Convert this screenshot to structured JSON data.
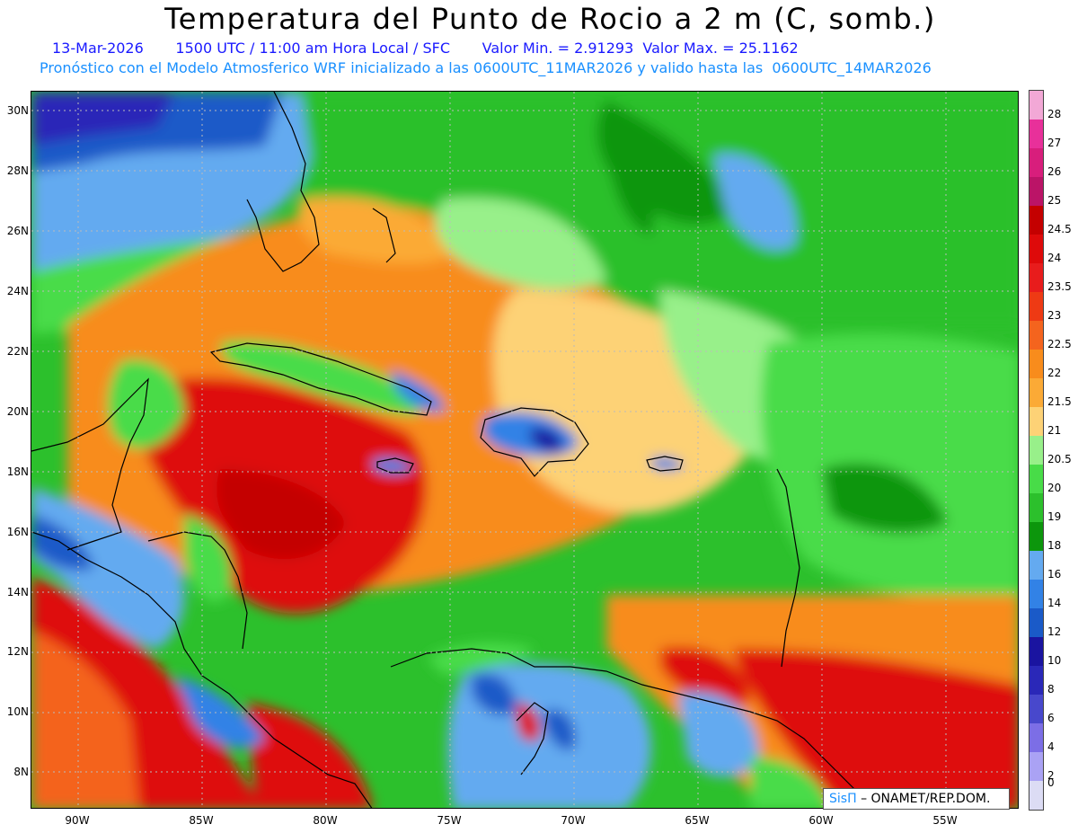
{
  "header": {
    "title": "Temperatura del Punto de Rocio a 2 m (C, somb.)",
    "date": "13-Mar-2026",
    "time": "1500 UTC / 11:00 am Hora Local / SFC",
    "min": "Valor Min. = 2.91293",
    "max": "Valor Max. = 25.1162",
    "model_line": "Pronóstico con el Modelo Atmosferico WRF inicializado a las 0600UTC_11MAR2026 y valido hasta las  0600UTC_14MAR2026"
  },
  "latitude_labels": [
    "30N",
    "28N",
    "26N",
    "24N",
    "22N",
    "20N",
    "18N",
    "16N",
    "14N",
    "12N",
    "10N",
    "8N"
  ],
  "longitude_labels": [
    "90W",
    "85W",
    "80W",
    "75W",
    "70W",
    "65W",
    "60W",
    "55W"
  ],
  "colorbar": {
    "labels": [
      "28",
      "27",
      "26",
      "25",
      "24.5",
      "24",
      "23.5",
      "23",
      "22.5",
      "22",
      "21.5",
      "21",
      "20.5",
      "20",
      "19",
      "18",
      "16",
      "14",
      "12",
      "10",
      "8",
      "6",
      "4",
      "2",
      "0"
    ],
    "colors": [
      "#f2a8d6",
      "#e8309a",
      "#d81e7c",
      "#bb1467",
      "#c40000",
      "#de0a0a",
      "#e81c1c",
      "#ee3a14",
      "#f4641e",
      "#f88c1c",
      "#fbaa36",
      "#fdd276",
      "#98f08a",
      "#48dc48",
      "#2cc02c",
      "#0c960c",
      "#64aaf0",
      "#3282e6",
      "#1a5ac8",
      "#1a14a0",
      "#2a28b8",
      "#4848cc",
      "#7c6ee6",
      "#aaa2f4",
      "#dcdcf4"
    ]
  },
  "credit": {
    "logo": "SisΠ",
    "text": "– ONAMET/REP.DOM."
  }
}
